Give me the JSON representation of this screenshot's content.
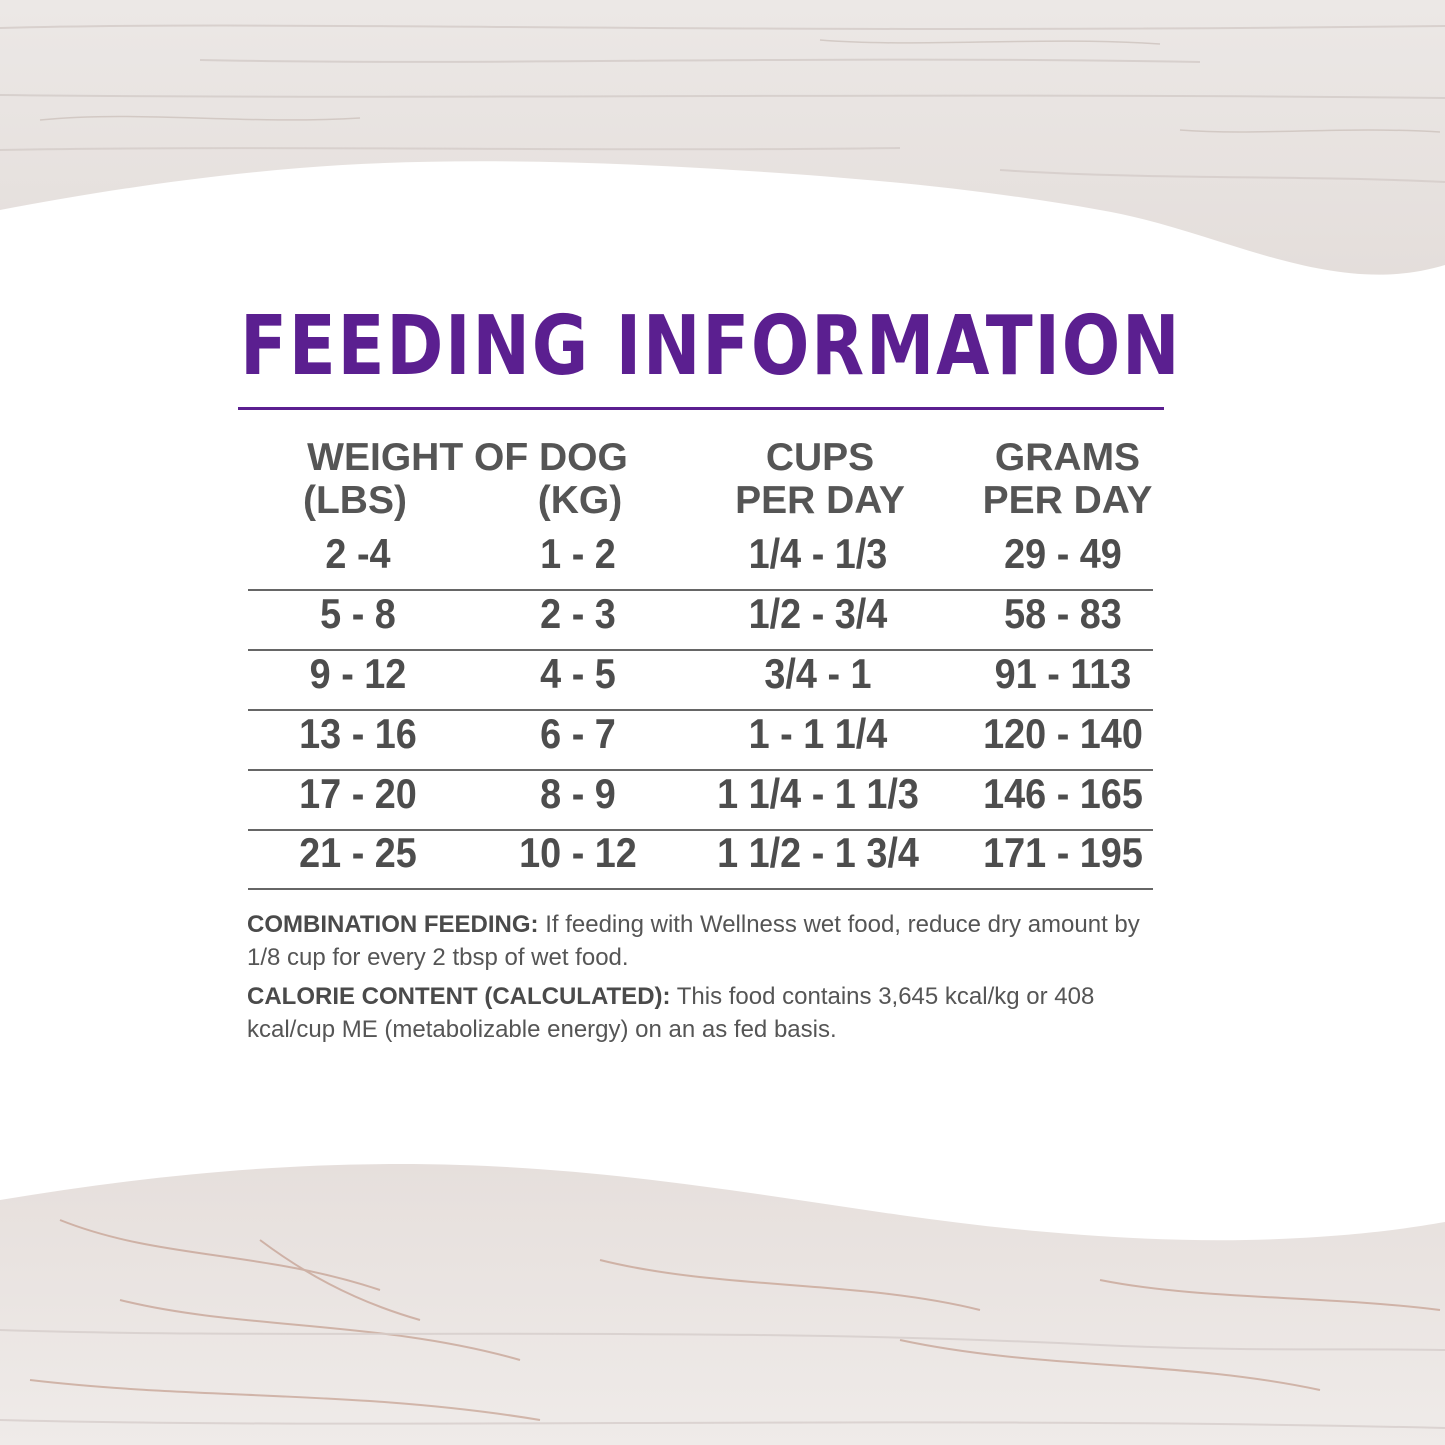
{
  "title": "FEEDING INFORMATION",
  "colors": {
    "title": "#5b1f90",
    "text": "#4d4d4d",
    "wood": "#e9e4e2"
  },
  "headers": {
    "weight_of_dog": "WEIGHT OF DOG",
    "lbs": "(LBS)",
    "kg": "(KG)",
    "cups_line1": "CUPS",
    "cups_line2": "PER DAY",
    "grams_line1": "GRAMS",
    "grams_line2": "PER DAY"
  },
  "rows": [
    {
      "lbs": "2 -4",
      "kg": "1 - 2",
      "cups": "1/4 - 1/3",
      "grams": "29 - 49"
    },
    {
      "lbs": "5 - 8",
      "kg": "2 - 3",
      "cups": "1/2 - 3/4",
      "grams": "58 - 83"
    },
    {
      "lbs": "9 - 12",
      "kg": "4 - 5",
      "cups": "3/4 - 1",
      "grams": "91 - 113"
    },
    {
      "lbs": "13 - 16",
      "kg": "6 - 7",
      "cups": "1 - 1 1/4",
      "grams": "120 - 140"
    },
    {
      "lbs": "17 - 20",
      "kg": "8 - 9",
      "cups": "1 1/4 - 1 1/3",
      "grams": "146 - 165"
    },
    {
      "lbs": "21 - 25",
      "kg": "10 - 12",
      "cups": "1 1/2 - 1 3/4",
      "grams": "171 - 195"
    }
  ],
  "notes": {
    "combination_label": "COMBINATION FEEDING:",
    "combination_text": " If feeding with Wellness wet food, reduce dry amount by 1/8 cup for every 2 tbsp of wet food.",
    "calorie_label": "CALORIE CONTENT (CALCULATED):",
    "calorie_text": " This food contains 3,645 kcal/kg or 408 kcal/cup ME (metabolizable energy) on an as fed basis."
  }
}
